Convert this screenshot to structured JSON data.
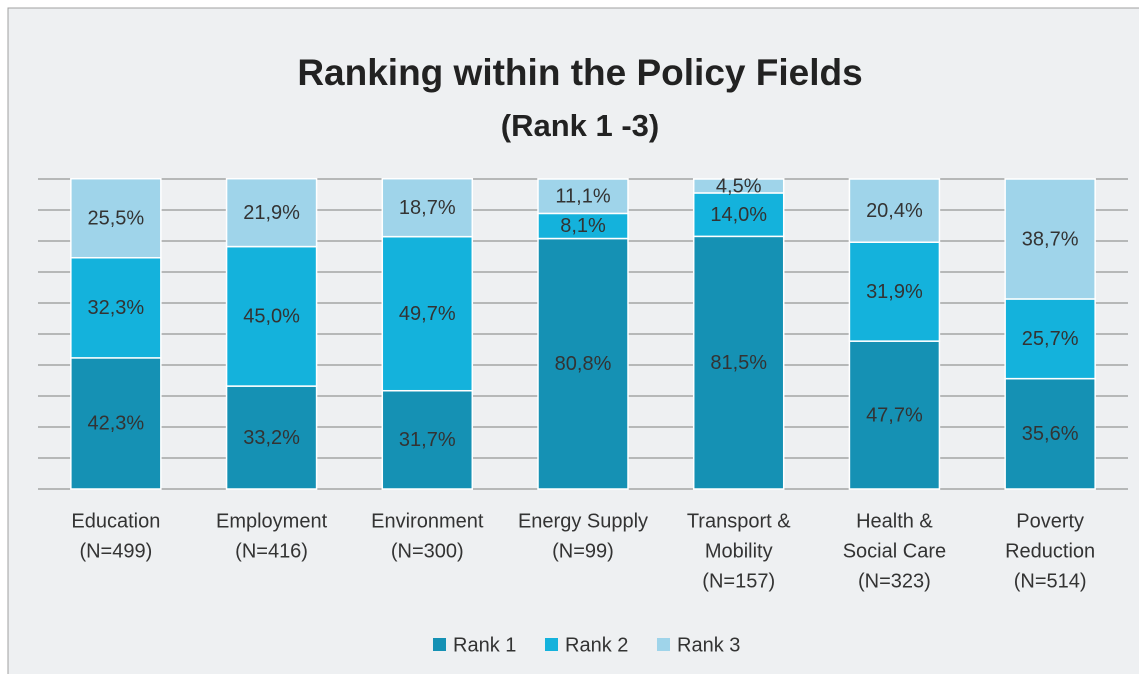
{
  "chart_data": {
    "type": "stacked_bar",
    "title": "Ranking within the Policy Fields",
    "subtitle": "(Rank 1 -3)",
    "categories": [
      [
        "Education",
        "(N=499)"
      ],
      [
        "Employment",
        "(N=416)"
      ],
      [
        "Environment",
        "(N=300)"
      ],
      [
        "Energy Supply",
        "(N=99)"
      ],
      [
        "Transport &",
        "Mobility",
        "(N=157)"
      ],
      [
        "Health &",
        "Social Care",
        "(N=323)"
      ],
      [
        "Poverty",
        "Reduction",
        "(N=514)"
      ]
    ],
    "series": [
      {
        "name": "Rank 1",
        "color": "#1591b4",
        "values": [
          42.3,
          33.2,
          31.7,
          80.8,
          81.5,
          47.7,
          35.6
        ],
        "value_labels": [
          "42,3%",
          "33,2%",
          "31,7%",
          "80,8%",
          "81,5%",
          "47,7%",
          "35,6%"
        ]
      },
      {
        "name": "Rank 2",
        "color": "#14b2dc",
        "values": [
          32.3,
          45.0,
          49.7,
          8.1,
          14.0,
          31.9,
          25.7
        ],
        "value_labels": [
          "32,3%",
          "45,0%",
          "49,7%",
          "8,1%",
          "14,0%",
          "31,9%",
          "25,7%"
        ]
      },
      {
        "name": "Rank 3",
        "color": "#9fd4ea",
        "values": [
          25.5,
          21.9,
          18.7,
          11.1,
          4.5,
          20.4,
          38.7
        ],
        "value_labels": [
          "25,5%",
          "21,9%",
          "18,7%",
          "11,1%",
          "4,5%",
          "20,4%",
          "38,7%"
        ]
      }
    ],
    "ylim": [
      0,
      100
    ],
    "yticks": [
      0,
      10,
      20,
      30,
      40,
      50,
      60,
      70,
      80,
      90,
      100
    ],
    "grid": true,
    "legend": "bottom"
  }
}
